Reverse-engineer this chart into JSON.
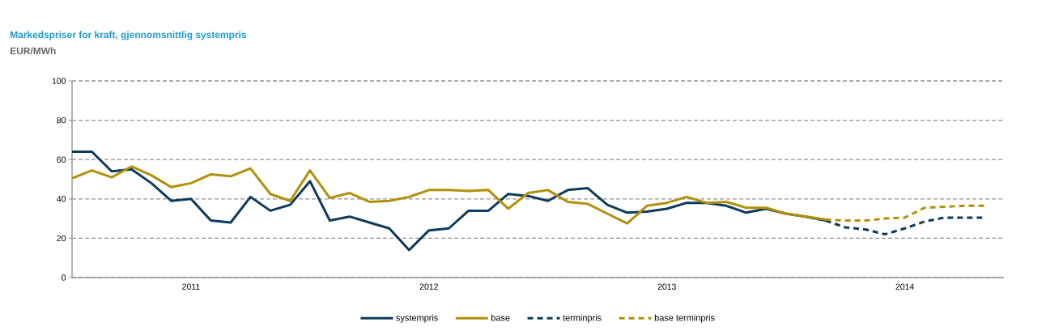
{
  "chart_data": {
    "type": "line",
    "title": "Markedspriser for kraft, gjennomsnittlig systempris",
    "subtitle": "EUR/MWh",
    "xlim": [
      "2011-01-01",
      "2014-12-01"
    ],
    "xticks": [
      {
        "value": "2011-01-01",
        "label": null
      },
      {
        "value": "2011-07-01",
        "label": "2011"
      },
      {
        "value": "2012-01-01",
        "label": null
      },
      {
        "value": "2012-07-01",
        "label": "2012"
      },
      {
        "value": "2013-01-01",
        "label": null
      },
      {
        "value": "2013-07-01",
        "label": "2013"
      },
      {
        "value": "2014-01-01",
        "label": null
      },
      {
        "value": "2014-07-01",
        "label": "2014"
      }
    ],
    "ylim": [
      0,
      100
    ],
    "yticks": [
      0,
      20,
      40,
      60,
      80,
      100
    ],
    "grid": "y",
    "legend": "bottom",
    "series": [
      {
        "name": "systempris",
        "color": "#0d3b5c",
        "line_style": "solid",
        "x": [
          "2011-01",
          "2011-02",
          "2011-03",
          "2011-04",
          "2011-05",
          "2011-06",
          "2011-07",
          "2011-08",
          "2011-09",
          "2011-10",
          "2011-11",
          "2011-12",
          "2012-01",
          "2012-02",
          "2012-03",
          "2012-04",
          "2012-05",
          "2012-06",
          "2012-07",
          "2012-08",
          "2012-09",
          "2012-10",
          "2012-11",
          "2012-12",
          "2013-01",
          "2013-02",
          "2013-03",
          "2013-04",
          "2013-05",
          "2013-06",
          "2013-07",
          "2013-08",
          "2013-09",
          "2013-10",
          "2013-11",
          "2013-12",
          "2014-01",
          "2014-02",
          "2014-03"
        ],
        "values": [
          64,
          64,
          54,
          55,
          48,
          39,
          40,
          29,
          28,
          41,
          34,
          37,
          49,
          29,
          31,
          28,
          25,
          14,
          24,
          25,
          34,
          34,
          42.5,
          41.5,
          39,
          44.5,
          45.5,
          37,
          33,
          33.5,
          35,
          38,
          38,
          36.5,
          33,
          35,
          32.5,
          31,
          29
        ]
      },
      {
        "name": "base",
        "color": "#b0900a",
        "line_style": "solid",
        "x": [
          "2011-01",
          "2011-02",
          "2011-03",
          "2011-04",
          "2011-05",
          "2011-06",
          "2011-07",
          "2011-08",
          "2011-09",
          "2011-10",
          "2011-11",
          "2011-12",
          "2012-01",
          "2012-02",
          "2012-03",
          "2012-04",
          "2012-05",
          "2012-06",
          "2012-07",
          "2012-08",
          "2012-09",
          "2012-10",
          "2012-11",
          "2012-12",
          "2013-01",
          "2013-02",
          "2013-03",
          "2013-04",
          "2013-05",
          "2013-06",
          "2013-07",
          "2013-08",
          "2013-09",
          "2013-10",
          "2013-11",
          "2013-12",
          "2014-01",
          "2014-02",
          "2014-03"
        ],
        "values": [
          50.5,
          54.5,
          51,
          56.5,
          52,
          46,
          48,
          52.5,
          51.5,
          55.5,
          42.5,
          39,
          54.5,
          40.5,
          43,
          38.5,
          39,
          41,
          44.5,
          44.5,
          44,
          44.5,
          35,
          43,
          44.5,
          38.5,
          37.5,
          32.5,
          27.5,
          36.5,
          38,
          41,
          38,
          38.5,
          35.5,
          35.5,
          32.5,
          31,
          29.5
        ]
      },
      {
        "name": "terminpris",
        "color": "#0d3b5c",
        "line_style": "dashed",
        "x": [
          "2014-03",
          "2014-04",
          "2014-05",
          "2014-06",
          "2014-07",
          "2014-08",
          "2014-09",
          "2014-10",
          "2014-11"
        ],
        "values": [
          29,
          25.5,
          24.5,
          22,
          25,
          28.5,
          30.5,
          30.5,
          30.5
        ]
      },
      {
        "name": "base terminpris",
        "color": "#b0900a",
        "line_style": "dashed",
        "x": [
          "2014-03",
          "2014-04",
          "2014-05",
          "2014-06",
          "2014-07",
          "2014-08",
          "2014-09",
          "2014-10",
          "2014-11"
        ],
        "values": [
          29.5,
          29,
          29,
          30,
          30.5,
          35.5,
          36,
          36.5,
          36.5
        ]
      }
    ]
  }
}
